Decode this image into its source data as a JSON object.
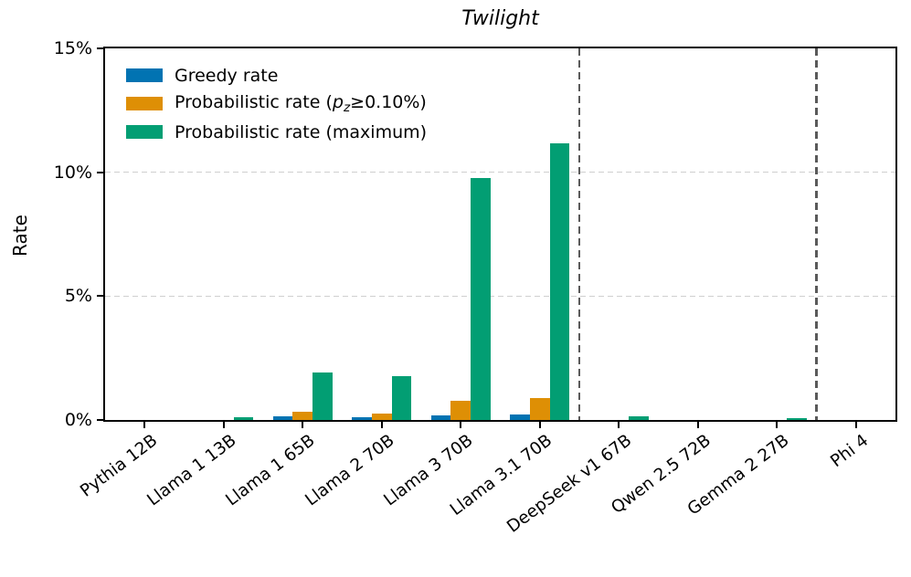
{
  "chart_data": {
    "type": "bar",
    "title": "Twilight",
    "xlabel": "",
    "ylabel": "Rate",
    "ylim": [
      0,
      15
    ],
    "yticks": [
      {
        "value": 0,
        "label": "0%"
      },
      {
        "value": 5,
        "label": "5%"
      },
      {
        "value": 10,
        "label": "10%"
      },
      {
        "value": 15,
        "label": "15%"
      }
    ],
    "gridlines": [
      5,
      10
    ],
    "grid_color": "#cfcfcf",
    "grid_style": "dashed",
    "legend_position": "upper left",
    "x_label_rotation": 37,
    "categories": [
      "Pythia 12B",
      "Llama 1 13B",
      "Llama 1 65B",
      "Llama 2 70B",
      "Llama 3 70B",
      "Llama 3.1 70B",
      "DeepSeek v1 67B",
      "Qwen 2.5 72B",
      "Gemma 2 27B",
      "Phi 4"
    ],
    "series": [
      {
        "name": "Greedy rate",
        "color": "#0173b2",
        "values": [
          0,
          0,
          0.13,
          0.1,
          0.2,
          0.23,
          0,
          0,
          0,
          0
        ]
      },
      {
        "name": "Probabilistic rate (pz≥0.10%)",
        "color": "#de8f05",
        "values": [
          0,
          0,
          0.33,
          0.25,
          0.77,
          0.87,
          0,
          0,
          0,
          0
        ]
      },
      {
        "name": "Probabilistic rate (maximum)",
        "color": "#029e73",
        "values": [
          0,
          0.1,
          1.9,
          1.78,
          9.75,
          11.15,
          0.15,
          0,
          0.07,
          0
        ]
      }
    ],
    "legend_entries": [
      {
        "segments": [
          {
            "t": "Greedy rate"
          }
        ]
      },
      {
        "segments": [
          {
            "t": "Probabilistic rate ("
          },
          {
            "t": "p",
            "style": "i"
          },
          {
            "t": "z",
            "style": "sub"
          },
          {
            "t": "≥0.10%)"
          }
        ]
      },
      {
        "segments": [
          {
            "t": "Probabilistic rate (maximum)"
          }
        ]
      }
    ],
    "separator_after_category_index": [
      5,
      8
    ],
    "separator_color": "#5a5a5a",
    "spine_color": "#000000"
  }
}
